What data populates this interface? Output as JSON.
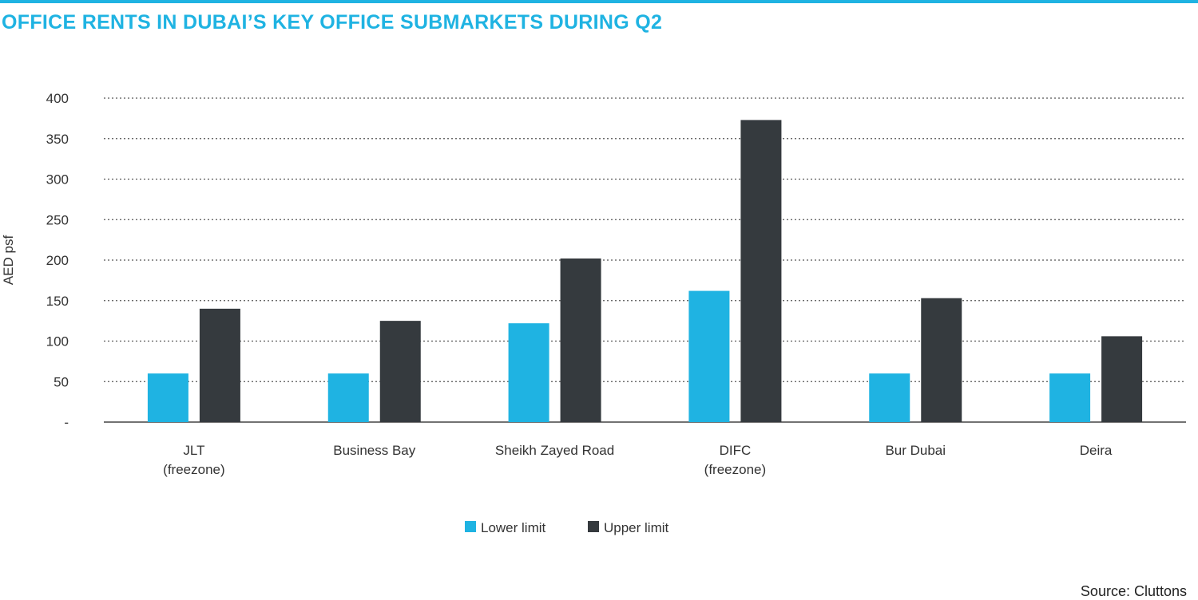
{
  "title": "OFFICE RENTS IN DUBAI’S KEY OFFICE SUBMARKETS DURING Q2",
  "source": "Source: Cluttons",
  "colors": {
    "accent": "#1fb3e2",
    "lower": "#1fb3e2",
    "upper": "#353a3e",
    "grid": "#555555",
    "text": "#333333"
  },
  "chart_data": {
    "type": "bar",
    "title": "OFFICE RENTS IN DUBAI’S KEY OFFICE SUBMARKETS DURING Q2",
    "xlabel": "",
    "ylabel": "AED psf",
    "ylim": [
      0,
      400
    ],
    "y_ticks": [
      "-",
      "50",
      "100",
      "150",
      "200",
      "250",
      "300",
      "350",
      "400"
    ],
    "y_tick_values": [
      0,
      50,
      100,
      150,
      200,
      250,
      300,
      350,
      400
    ],
    "grid": "dotted horizontal",
    "legend_position": "bottom-center",
    "categories": [
      [
        "JLT",
        "(freezone)"
      ],
      [
        "Business  Bay"
      ],
      [
        "Sheikh Zayed Road"
      ],
      [
        "DIFC",
        "(freezone)"
      ],
      [
        "Bur Dubai"
      ],
      [
        "Deira"
      ]
    ],
    "series": [
      {
        "name": "Lower limit",
        "color": "#1fb3e2",
        "values": [
          60,
          60,
          122,
          162,
          60,
          60
        ]
      },
      {
        "name": "Upper limit",
        "color": "#353a3e",
        "values": [
          140,
          125,
          202,
          373,
          153,
          106
        ]
      }
    ]
  }
}
